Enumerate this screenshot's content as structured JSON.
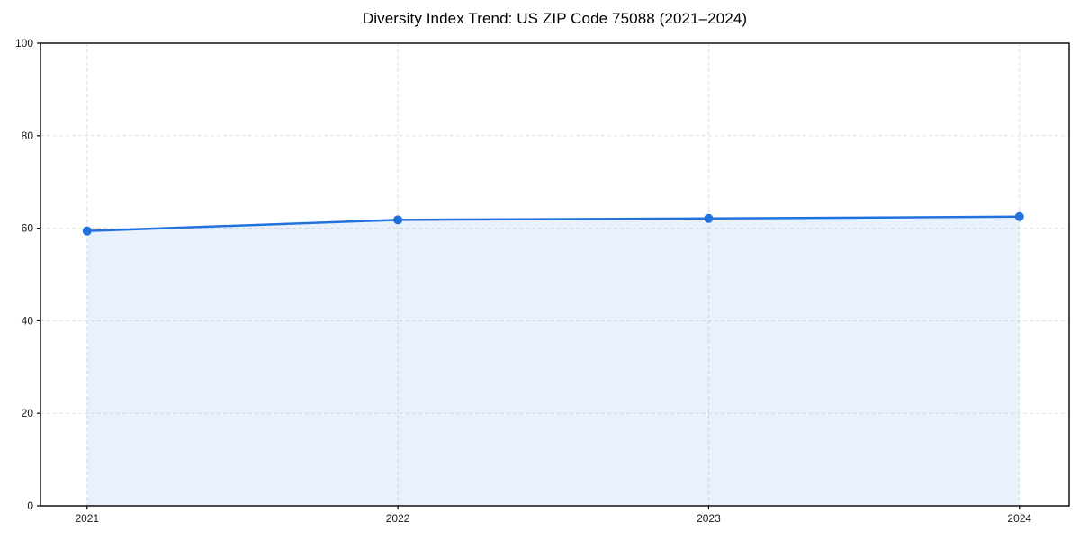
{
  "chart_data": {
    "type": "area",
    "title": "Diversity Index Trend: US ZIP Code 75088 (2021–2024)",
    "x": [
      2021,
      2022,
      2023,
      2024
    ],
    "values": [
      59.4,
      61.8,
      62.1,
      62.5
    ],
    "xticks": [
      2021,
      2022,
      2023,
      2024
    ],
    "yticks": [
      0,
      20,
      40,
      60,
      80,
      100
    ],
    "xlim": [
      2020.85,
      2024.16
    ],
    "ylim": [
      0,
      100
    ],
    "xlabel": "",
    "ylabel": "",
    "grid": true,
    "legend_position": "none",
    "colors": {
      "line": "#2272de",
      "marker": "#2272de",
      "fill": "#2272de",
      "fill_opacity": 0.1,
      "grid": "#cfcfcf",
      "spine": "#000000",
      "tick_label": "#1a1a1a",
      "title": "#000000",
      "background": "#ffffff"
    }
  }
}
